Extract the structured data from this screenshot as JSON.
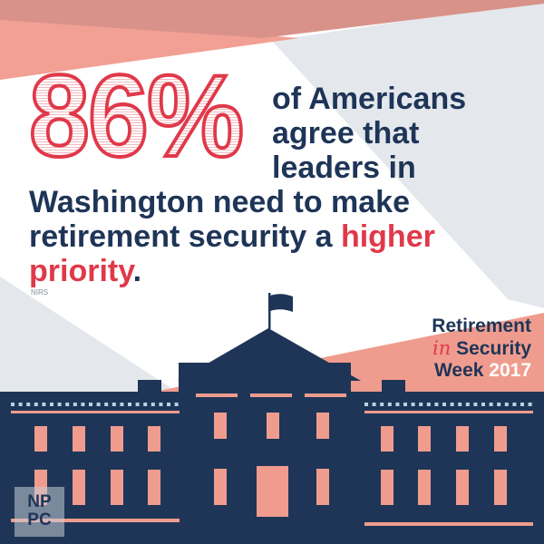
{
  "stat": {
    "value": "86%"
  },
  "headline": {
    "line1": "of Americans",
    "line2": "agree that",
    "line3": "leaders in",
    "line4": "Washington need to make",
    "line5_prefix": "retirement security a ",
    "line5_highlight": "higher",
    "line6_highlight": "priority",
    "line6_suffix": "."
  },
  "source": "NIRS",
  "event_logo": {
    "word1": "Retirement",
    "word2": "in",
    "word3": "Security",
    "word4": "Week",
    "year": "2017"
  },
  "org_logo": {
    "line1": "NP",
    "line2": "PC"
  },
  "colors": {
    "navy": "#1e3557",
    "red": "#e0394a",
    "salmon": "#ef9c8e",
    "gray": "#e4e8ec"
  }
}
